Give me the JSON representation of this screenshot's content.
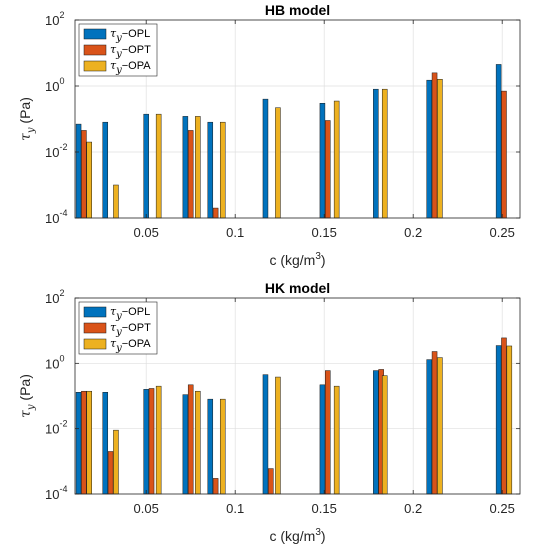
{
  "colors": {
    "OPL": "#0072BD",
    "OPT": "#D95319",
    "OPA": "#EDB120"
  },
  "legend_entries": [
    {
      "tau": "τ",
      "sub": "y",
      "rest": "−OPL"
    },
    {
      "tau": "τ",
      "sub": "y",
      "rest": "−OPT"
    },
    {
      "tau": "τ",
      "sub": "y",
      "rest": "−OPA"
    }
  ],
  "axes": {
    "xlabel": {
      "prefix": "c (kg/m",
      "sup": "3",
      "suffix": ")"
    },
    "ylabel": {
      "tau": "τ",
      "sub": "y",
      "rest": " (Pa)"
    },
    "x_tick_labels": [
      "0.05",
      "0.1",
      "0.15",
      "0.2",
      "0.25"
    ],
    "x_ticks": [
      0.05,
      0.1,
      0.15,
      0.2,
      0.25
    ],
    "y_tick_labels": [
      {
        "base": "10",
        "exp": "-4"
      },
      {
        "base": "10",
        "exp": "-2"
      },
      {
        "base": "10",
        "exp": "0"
      },
      {
        "base": "10",
        "exp": "2"
      }
    ]
  },
  "chart_data": [
    {
      "type": "bar",
      "title": "HB model",
      "xlabel": "c (kg/m3)",
      "ylabel": "τy (Pa)",
      "yscale": "log",
      "xlim": [
        0.01,
        0.26
      ],
      "ylim": [
        0.0001,
        100
      ],
      "grid": true,
      "legend_position": "top-left",
      "series": [
        {
          "name": "τy−OPL",
          "x": [
            0.012,
            0.027,
            0.05,
            0.072,
            0.086,
            0.117,
            0.149,
            0.179,
            0.209,
            0.248
          ],
          "values": [
            0.07,
            0.08,
            0.14,
            0.12,
            0.08,
            0.4,
            0.3,
            0.8,
            1.5,
            4.5
          ]
        },
        {
          "name": "τy−OPT",
          "x": [
            0.015,
            0.075,
            0.089,
            0.152,
            0.212,
            0.251
          ],
          "values": [
            0.045,
            0.045,
            0.0002,
            0.09,
            2.5,
            0.7
          ]
        },
        {
          "name": "τy−OPA",
          "x": [
            0.018,
            0.033,
            0.057,
            0.079,
            0.093,
            0.124,
            0.157,
            0.184,
            0.215
          ],
          "values": [
            0.02,
            0.001,
            0.14,
            0.12,
            0.08,
            0.22,
            0.35,
            0.8,
            1.6
          ]
        }
      ]
    },
    {
      "type": "bar",
      "title": "HK model",
      "xlabel": "c (kg/m3)",
      "ylabel": "τy (Pa)",
      "yscale": "log",
      "xlim": [
        0.01,
        0.26
      ],
      "ylim": [
        0.0001,
        100
      ],
      "grid": true,
      "legend_position": "top-left",
      "series": [
        {
          "name": "τy−OPL",
          "x": [
            0.012,
            0.027,
            0.05,
            0.072,
            0.086,
            0.117,
            0.149,
            0.179,
            0.209,
            0.248
          ],
          "values": [
            0.13,
            0.13,
            0.16,
            0.11,
            0.08,
            0.45,
            0.22,
            0.6,
            1.3,
            3.5
          ]
        },
        {
          "name": "τy−OPT",
          "x": [
            0.015,
            0.03,
            0.053,
            0.075,
            0.089,
            0.12,
            0.152,
            0.182,
            0.212,
            0.251
          ],
          "values": [
            0.14,
            0.002,
            0.17,
            0.22,
            0.0003,
            0.0006,
            0.6,
            0.65,
            2.3,
            6.0
          ]
        },
        {
          "name": "τy−OPA",
          "x": [
            0.018,
            0.033,
            0.057,
            0.079,
            0.093,
            0.124,
            0.157,
            0.184,
            0.215,
            0.254
          ],
          "values": [
            0.14,
            0.009,
            0.2,
            0.14,
            0.08,
            0.38,
            0.2,
            0.42,
            1.5,
            3.4
          ]
        }
      ]
    }
  ]
}
